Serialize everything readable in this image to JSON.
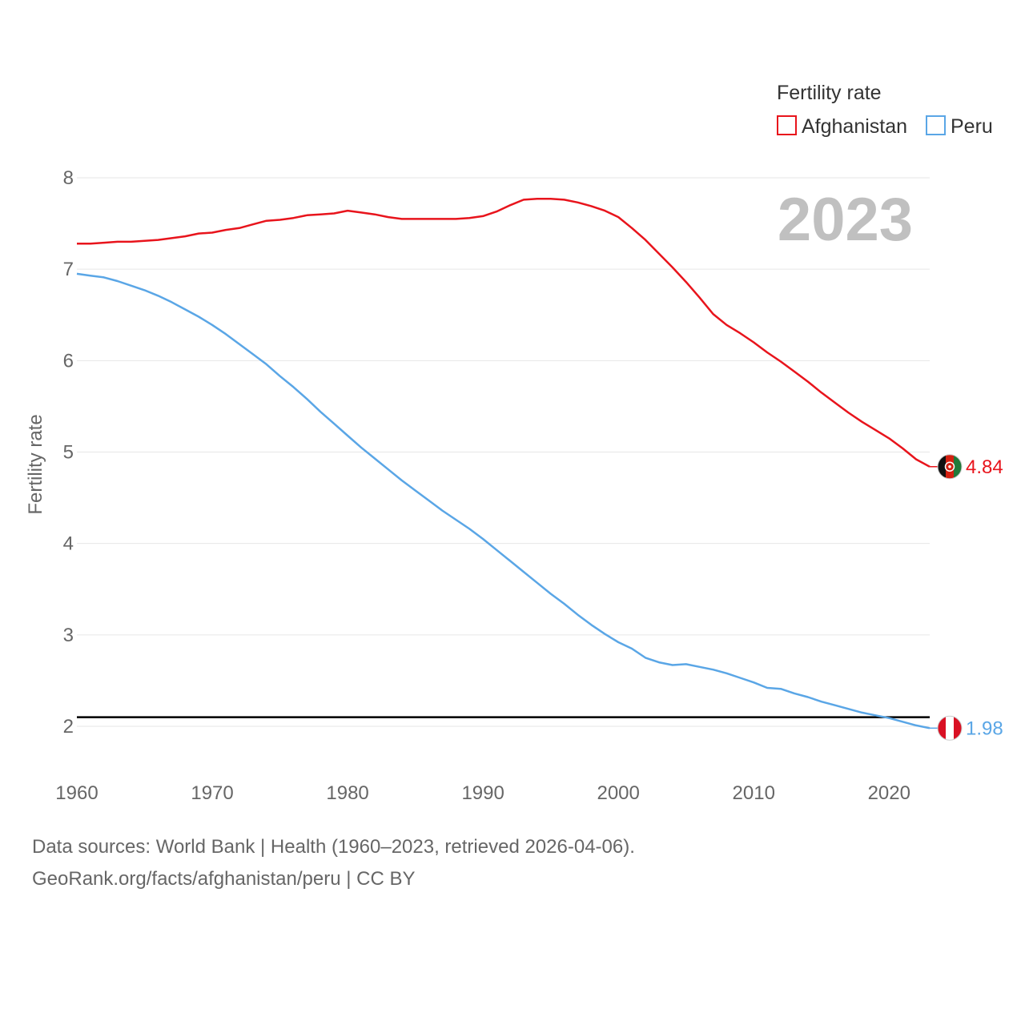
{
  "chart_data": {
    "type": "line",
    "title": "",
    "year_display": "2023",
    "xlabel": "",
    "ylabel": "Fertility rate",
    "xlim": [
      1960,
      2023
    ],
    "ylim": [
      1.5,
      8.3
    ],
    "x_ticks": [
      1960,
      1970,
      1980,
      1990,
      2000,
      2010,
      2020
    ],
    "y_ticks": [
      2,
      3,
      4,
      5,
      6,
      7,
      8
    ],
    "grid": true,
    "legend": {
      "title": "Fertility rate",
      "position": "top-right",
      "entries": [
        "Afghanistan",
        "Peru"
      ]
    },
    "reference_line": {
      "value": 2.1,
      "color": "#000000"
    },
    "x": [
      1960,
      1961,
      1962,
      1963,
      1964,
      1965,
      1966,
      1967,
      1968,
      1969,
      1970,
      1971,
      1972,
      1973,
      1974,
      1975,
      1976,
      1977,
      1978,
      1979,
      1980,
      1981,
      1982,
      1983,
      1984,
      1985,
      1986,
      1987,
      1988,
      1989,
      1990,
      1991,
      1992,
      1993,
      1994,
      1995,
      1996,
      1997,
      1998,
      1999,
      2000,
      2001,
      2002,
      2003,
      2004,
      2005,
      2006,
      2007,
      2008,
      2009,
      2010,
      2011,
      2012,
      2013,
      2014,
      2015,
      2016,
      2017,
      2018,
      2019,
      2020,
      2021,
      2022,
      2023
    ],
    "series": [
      {
        "name": "Afghanistan",
        "color": "#e8141c",
        "end_label": "4.84",
        "values": [
          7.28,
          7.28,
          7.29,
          7.3,
          7.3,
          7.31,
          7.32,
          7.34,
          7.36,
          7.39,
          7.4,
          7.43,
          7.45,
          7.49,
          7.53,
          7.54,
          7.56,
          7.59,
          7.6,
          7.61,
          7.64,
          7.62,
          7.6,
          7.57,
          7.55,
          7.55,
          7.55,
          7.55,
          7.55,
          7.56,
          7.58,
          7.63,
          7.7,
          7.76,
          7.77,
          7.77,
          7.76,
          7.73,
          7.69,
          7.64,
          7.57,
          7.45,
          7.32,
          7.17,
          7.02,
          6.86,
          6.69,
          6.51,
          6.39,
          6.3,
          6.2,
          6.09,
          5.99,
          5.88,
          5.77,
          5.65,
          5.54,
          5.43,
          5.33,
          5.24,
          5.15,
          5.04,
          4.92,
          4.84
        ]
      },
      {
        "name": "Peru",
        "color": "#5aa6e6",
        "end_label": "1.98",
        "values": [
          6.95,
          6.93,
          6.91,
          6.87,
          6.82,
          6.77,
          6.71,
          6.64,
          6.56,
          6.48,
          6.39,
          6.29,
          6.18,
          6.07,
          5.96,
          5.83,
          5.71,
          5.58,
          5.44,
          5.31,
          5.18,
          5.05,
          4.93,
          4.81,
          4.69,
          4.58,
          4.47,
          4.36,
          4.26,
          4.16,
          4.05,
          3.93,
          3.81,
          3.69,
          3.57,
          3.45,
          3.34,
          3.22,
          3.11,
          3.01,
          2.92,
          2.85,
          2.75,
          2.7,
          2.67,
          2.68,
          2.65,
          2.62,
          2.58,
          2.53,
          2.48,
          2.42,
          2.41,
          2.36,
          2.32,
          2.27,
          2.23,
          2.19,
          2.15,
          2.12,
          2.09,
          2.05,
          2.01,
          1.98
        ]
      }
    ]
  },
  "footer": {
    "line1": "Data sources: World Bank | Health (1960–2023, retrieved 2026-04-06).",
    "line2": "GeoRank.org/facts/afghanistan/peru | CC BY"
  },
  "flags": {
    "afghanistan": {
      "colors": [
        "#111111",
        "#d32011",
        "#1f7a3a"
      ]
    },
    "peru": {
      "colors": [
        "#d91023",
        "#ffffff",
        "#d91023"
      ]
    }
  }
}
